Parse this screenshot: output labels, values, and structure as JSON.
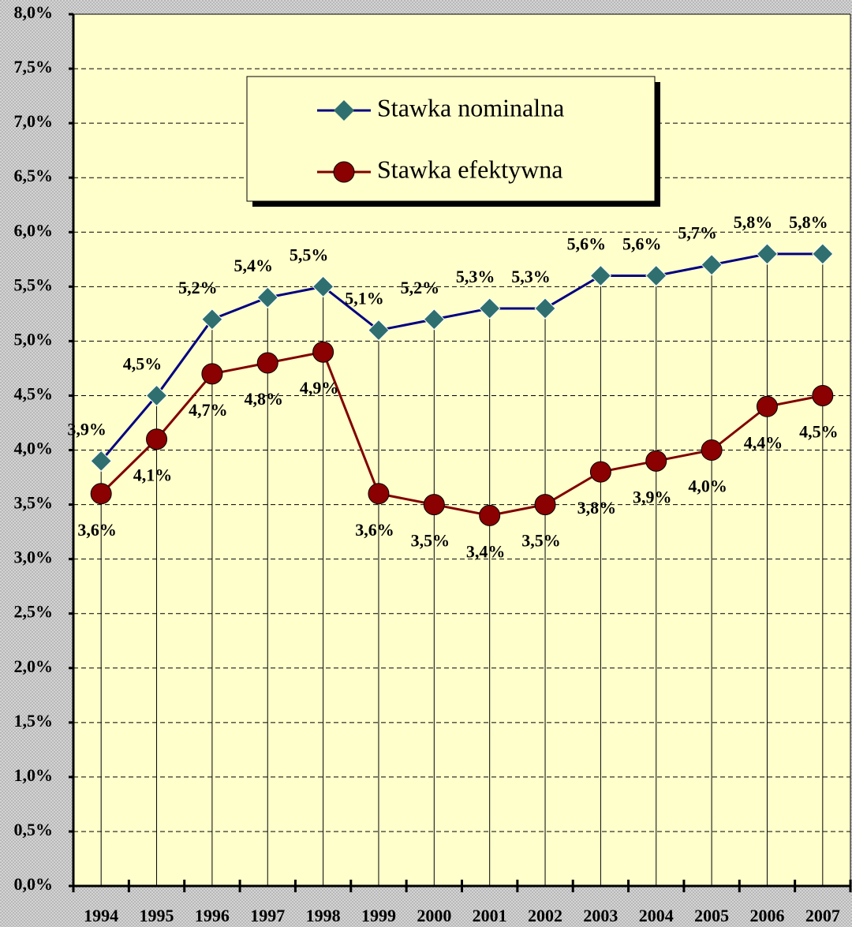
{
  "chart_data": {
    "type": "line",
    "categories": [
      "1994",
      "1995",
      "1996",
      "1997",
      "1998",
      "1999",
      "2000",
      "2001",
      "2002",
      "2003",
      "2004",
      "2005",
      "2006",
      "2007"
    ],
    "series": [
      {
        "name": "Stawka nominalna",
        "color": "#000080",
        "marker_color": "#2f6f6f",
        "marker": "diamond",
        "values": [
          3.9,
          4.5,
          5.2,
          5.4,
          5.5,
          5.1,
          5.2,
          5.3,
          5.3,
          5.6,
          5.6,
          5.7,
          5.8,
          5.8
        ],
        "value_labels": [
          "3,9%",
          "4,5%",
          "5,2%",
          "5,4%",
          "5,5%",
          "5,1%",
          "5,2%",
          "5,3%",
          "5,3%",
          "5,6%",
          "5,6%",
          "5,7%",
          "5,8%",
          "5,8%"
        ]
      },
      {
        "name": "Stawka efektywna",
        "color": "#800000",
        "marker_color": "#8b0000",
        "marker": "circle",
        "values": [
          3.6,
          4.1,
          4.7,
          4.8,
          4.9,
          3.6,
          3.5,
          3.4,
          3.5,
          3.8,
          3.9,
          4.0,
          4.4,
          4.5
        ],
        "value_labels": [
          "3,6%",
          "4,1%",
          "4,7%",
          "4,8%",
          "4,9%",
          "3,6%",
          "3,5%",
          "3,4%",
          "3,5%",
          "3,8%",
          "3,9%",
          "4,0%",
          "4,4%",
          "4,5%"
        ]
      }
    ],
    "ylim": [
      0,
      8
    ],
    "yticks": [
      {
        "value": 0,
        "label": "0,0%"
      },
      {
        "value": 0.5,
        "label": "0,5%"
      },
      {
        "value": 1,
        "label": "1,0%"
      },
      {
        "value": 1.5,
        "label": "1,5%"
      },
      {
        "value": 2,
        "label": "2,0%"
      },
      {
        "value": 2.5,
        "label": "2,5%"
      },
      {
        "value": 3,
        "label": "3,0%"
      },
      {
        "value": 3.5,
        "label": "3,5%"
      },
      {
        "value": 4,
        "label": "4,0%"
      },
      {
        "value": 4.5,
        "label": "4,5%"
      },
      {
        "value": 5,
        "label": "5,0%"
      },
      {
        "value": 5.5,
        "label": "5,5%"
      },
      {
        "value": 6,
        "label": "6,0%"
      },
      {
        "value": 6.5,
        "label": "6,5%"
      },
      {
        "value": 7,
        "label": "7,0%"
      },
      {
        "value": 7.5,
        "label": "7,5%"
      },
      {
        "value": 8,
        "label": "8,0%"
      }
    ],
    "grid": true,
    "legend": "top"
  }
}
